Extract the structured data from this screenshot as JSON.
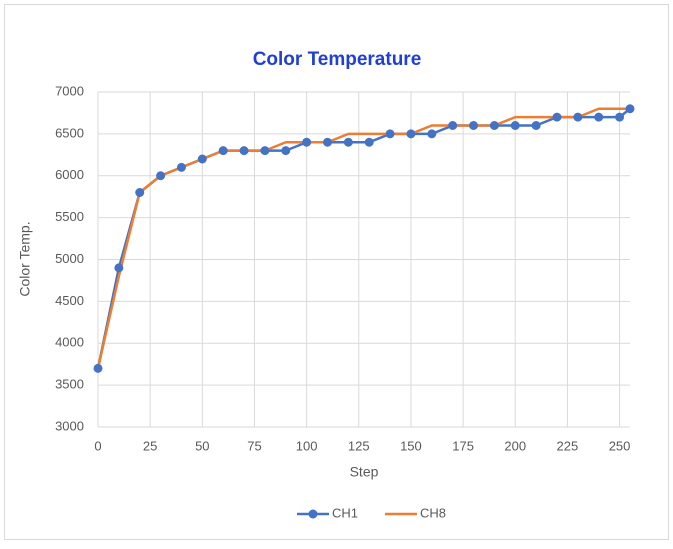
{
  "chart_data": {
    "type": "line",
    "title": "Color Temperature",
    "xlabel": "Step",
    "ylabel": "Color Temp.",
    "x": [
      0,
      10,
      20,
      30,
      40,
      50,
      60,
      70,
      80,
      90,
      100,
      110,
      120,
      130,
      140,
      150,
      160,
      170,
      180,
      190,
      200,
      210,
      220,
      230,
      240,
      250,
      255
    ],
    "series": [
      {
        "name": "CH1",
        "color": "#4472c4",
        "marker": true,
        "values": [
          3700,
          4900,
          5800,
          6000,
          6100,
          6200,
          6300,
          6300,
          6300,
          6300,
          6400,
          6400,
          6400,
          6400,
          6500,
          6500,
          6500,
          6600,
          6600,
          6600,
          6600,
          6600,
          6700,
          6700,
          6700,
          6700,
          6800
        ]
      },
      {
        "name": "CH8",
        "color": "#ed7d31",
        "marker": false,
        "values": [
          3700,
          4800,
          5800,
          6000,
          6100,
          6200,
          6300,
          6300,
          6300,
          6400,
          6400,
          6400,
          6500,
          6500,
          6500,
          6500,
          6600,
          6600,
          6600,
          6600,
          6700,
          6700,
          6700,
          6700,
          6800,
          6800,
          6800
        ]
      }
    ],
    "xlim": [
      0,
      255
    ],
    "xticks": [
      0,
      25,
      50,
      75,
      100,
      125,
      150,
      175,
      200,
      225,
      250
    ],
    "ylim": [
      3000,
      7000
    ],
    "yticks": [
      3000,
      3500,
      4000,
      4500,
      5000,
      5500,
      6000,
      6500,
      7000
    ],
    "grid": true,
    "legend": "bottom"
  }
}
